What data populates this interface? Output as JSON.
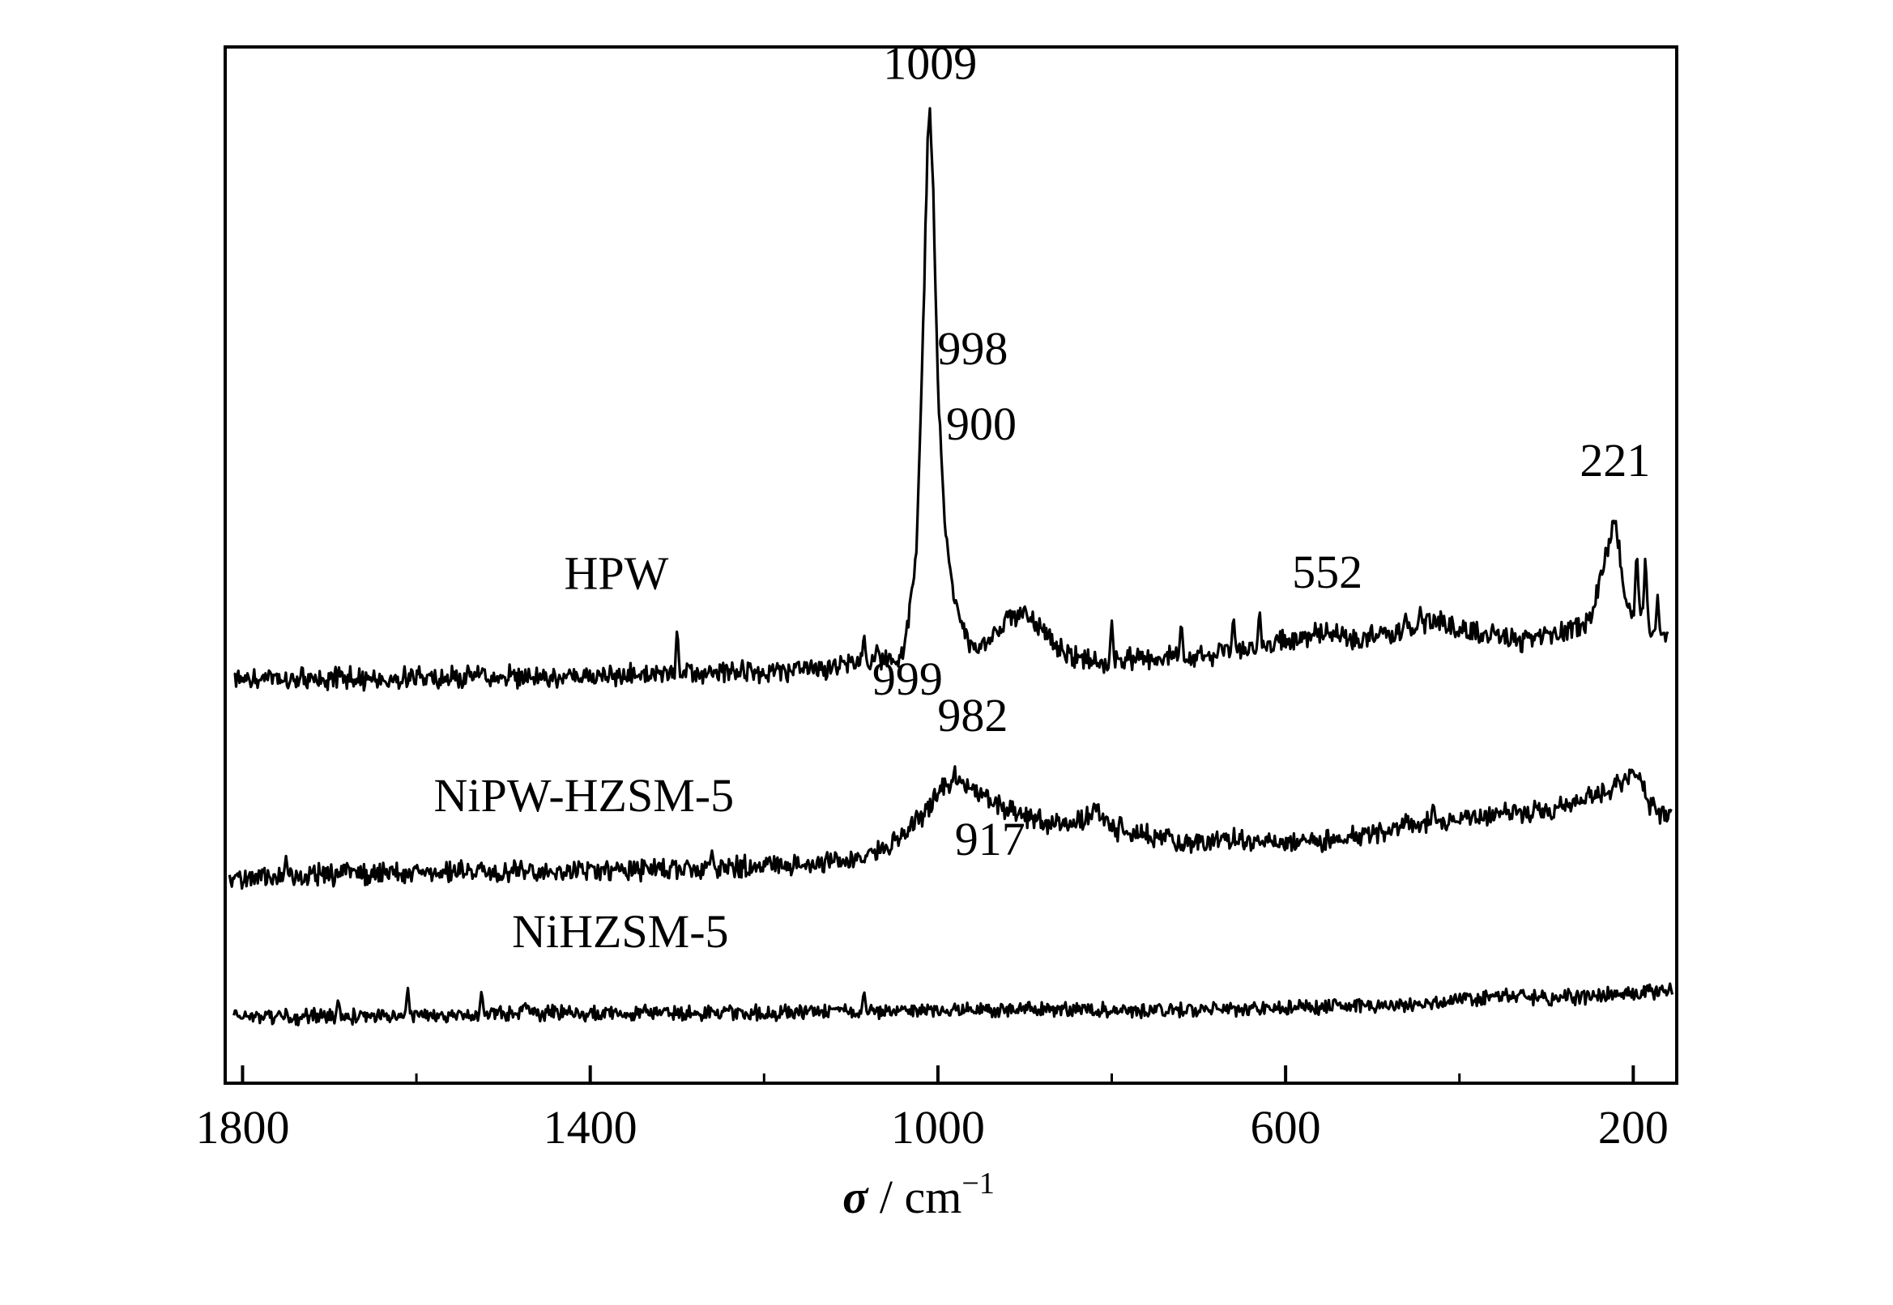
{
  "chart_data": {
    "type": "line",
    "title": "",
    "xlabel": {
      "symbol": "σ",
      "separator": " / ",
      "unit": "cm",
      "exponent": "−1"
    },
    "ylabel": "",
    "xlim": [
      1820,
      150
    ],
    "x_reversed": true,
    "x_ticks": [
      1800,
      1400,
      1000,
      600,
      200
    ],
    "x_minor_ticks": [
      1600,
      1200,
      800,
      400
    ],
    "y_ticks_shown": false,
    "grid": false,
    "legend": "none",
    "series": [
      {
        "name": "HPW",
        "baseline": 560,
        "noise": 7,
        "seed": 11,
        "points": [
          [
            1810,
            560
          ],
          [
            1600,
            558
          ],
          [
            1400,
            556
          ],
          [
            1200,
            553
          ],
          [
            1090,
            548
          ],
          [
            1040,
            540
          ],
          [
            1025,
            460
          ],
          [
            1018,
            300
          ],
          [
            1012,
            120
          ],
          [
            1009,
            95
          ],
          [
            1006,
            140
          ],
          [
            1000,
            320
          ],
          [
            992,
            430
          ],
          [
            985,
            480
          ],
          [
            975,
            510
          ],
          [
            960,
            535
          ],
          [
            940,
            525
          ],
          [
            920,
            510
          ],
          [
            900,
            505
          ],
          [
            880,
            520
          ],
          [
            860,
            535
          ],
          [
            820,
            545
          ],
          [
            760,
            542
          ],
          [
            700,
            540
          ],
          [
            640,
            535
          ],
          [
            580,
            525
          ],
          [
            552,
            518
          ],
          [
            520,
            528
          ],
          [
            470,
            520
          ],
          [
            430,
            512
          ],
          [
            380,
            520
          ],
          [
            330,
            528
          ],
          [
            280,
            520
          ],
          [
            250,
            510
          ],
          [
            235,
            470
          ],
          [
            225,
            440
          ],
          [
            221,
            425
          ],
          [
            216,
            450
          ],
          [
            212,
            480
          ],
          [
            205,
            505
          ],
          [
            190,
            500
          ],
          [
            180,
            520
          ],
          [
            160,
            525
          ]
        ],
        "spikes": [
          [
            1300,
            515
          ],
          [
            1085,
            520
          ],
          [
            1070,
            530
          ],
          [
            800,
            510
          ],
          [
            720,
            510
          ],
          [
            660,
            505
          ],
          [
            630,
            500
          ],
          [
            490,
            518
          ],
          [
            462,
            505
          ],
          [
            445,
            500
          ],
          [
            196,
            450
          ],
          [
            186,
            455
          ],
          [
            172,
            490
          ]
        ]
      },
      {
        "name": "NiPW-HZSM-5",
        "baseline": 720,
        "noise": 7,
        "seed": 23,
        "points": [
          [
            1815,
            725
          ],
          [
            1700,
            720
          ],
          [
            1500,
            718
          ],
          [
            1300,
            715
          ],
          [
            1150,
            712
          ],
          [
            1100,
            708
          ],
          [
            1060,
            700
          ],
          [
            1030,
            680
          ],
          [
            1010,
            665
          ],
          [
            995,
            648
          ],
          [
            982,
            640
          ],
          [
            970,
            645
          ],
          [
            950,
            655
          ],
          [
            930,
            665
          ],
          [
            917,
            668
          ],
          [
            900,
            672
          ],
          [
            860,
            680
          ],
          [
            840,
            678
          ],
          [
            815,
            670
          ],
          [
            790,
            685
          ],
          [
            740,
            690
          ],
          [
            700,
            695
          ],
          [
            650,
            690
          ],
          [
            600,
            695
          ],
          [
            540,
            690
          ],
          [
            500,
            688
          ],
          [
            460,
            680
          ],
          [
            420,
            676
          ],
          [
            380,
            672
          ],
          [
            340,
            670
          ],
          [
            300,
            668
          ],
          [
            260,
            660
          ],
          [
            230,
            650
          ],
          [
            210,
            642
          ],
          [
            195,
            635
          ],
          [
            185,
            660
          ],
          [
            170,
            672
          ],
          [
            155,
            670
          ]
        ],
        "spikes": [
          [
            1750,
            705
          ],
          [
            1260,
            700
          ],
          [
            820,
            660
          ],
          [
            790,
            670
          ],
          [
            430,
            660
          ]
        ]
      },
      {
        "name": "NiHZSM-5",
        "baseline": 835,
        "noise": 5,
        "seed": 37,
        "points": [
          [
            1810,
            838
          ],
          [
            1600,
            836
          ],
          [
            1400,
            834
          ],
          [
            1200,
            834
          ],
          [
            1000,
            832
          ],
          [
            800,
            832
          ],
          [
            600,
            830
          ],
          [
            460,
            828
          ],
          [
            380,
            822
          ],
          [
            340,
            820
          ],
          [
            300,
            822
          ],
          [
            240,
            820
          ],
          [
            160,
            816
          ],
          [
            155,
            816
          ]
        ],
        "spikes": [
          [
            1690,
            822
          ],
          [
            1610,
            812
          ],
          [
            1525,
            815
          ],
          [
            1475,
            825
          ],
          [
            1085,
            815
          ]
        ]
      }
    ],
    "series_labels": [
      {
        "series": "HPW",
        "text": "HPW",
        "x": 1430,
        "y": 485
      },
      {
        "series": "NiPW-HZSM-5",
        "text": "NiPW-HZSM-5",
        "x": 1580,
        "y": 668
      },
      {
        "series": "NiHZSM-5",
        "text": "NiHZSM-5",
        "x": 1490,
        "y": 780
      }
    ],
    "annotations": [
      {
        "text": "1009",
        "x": 1009,
        "y": 65
      },
      {
        "text": "998",
        "x": 960,
        "y": 300
      },
      {
        "text": "900",
        "x": 950,
        "y": 362
      },
      {
        "text": "221",
        "x": 221,
        "y": 392
      },
      {
        "text": "552",
        "x": 552,
        "y": 484
      },
      {
        "text": "999",
        "x": 1035,
        "y": 572
      },
      {
        "text": "982",
        "x": 960,
        "y": 602
      },
      {
        "text": "917",
        "x": 940,
        "y": 704
      }
    ]
  }
}
